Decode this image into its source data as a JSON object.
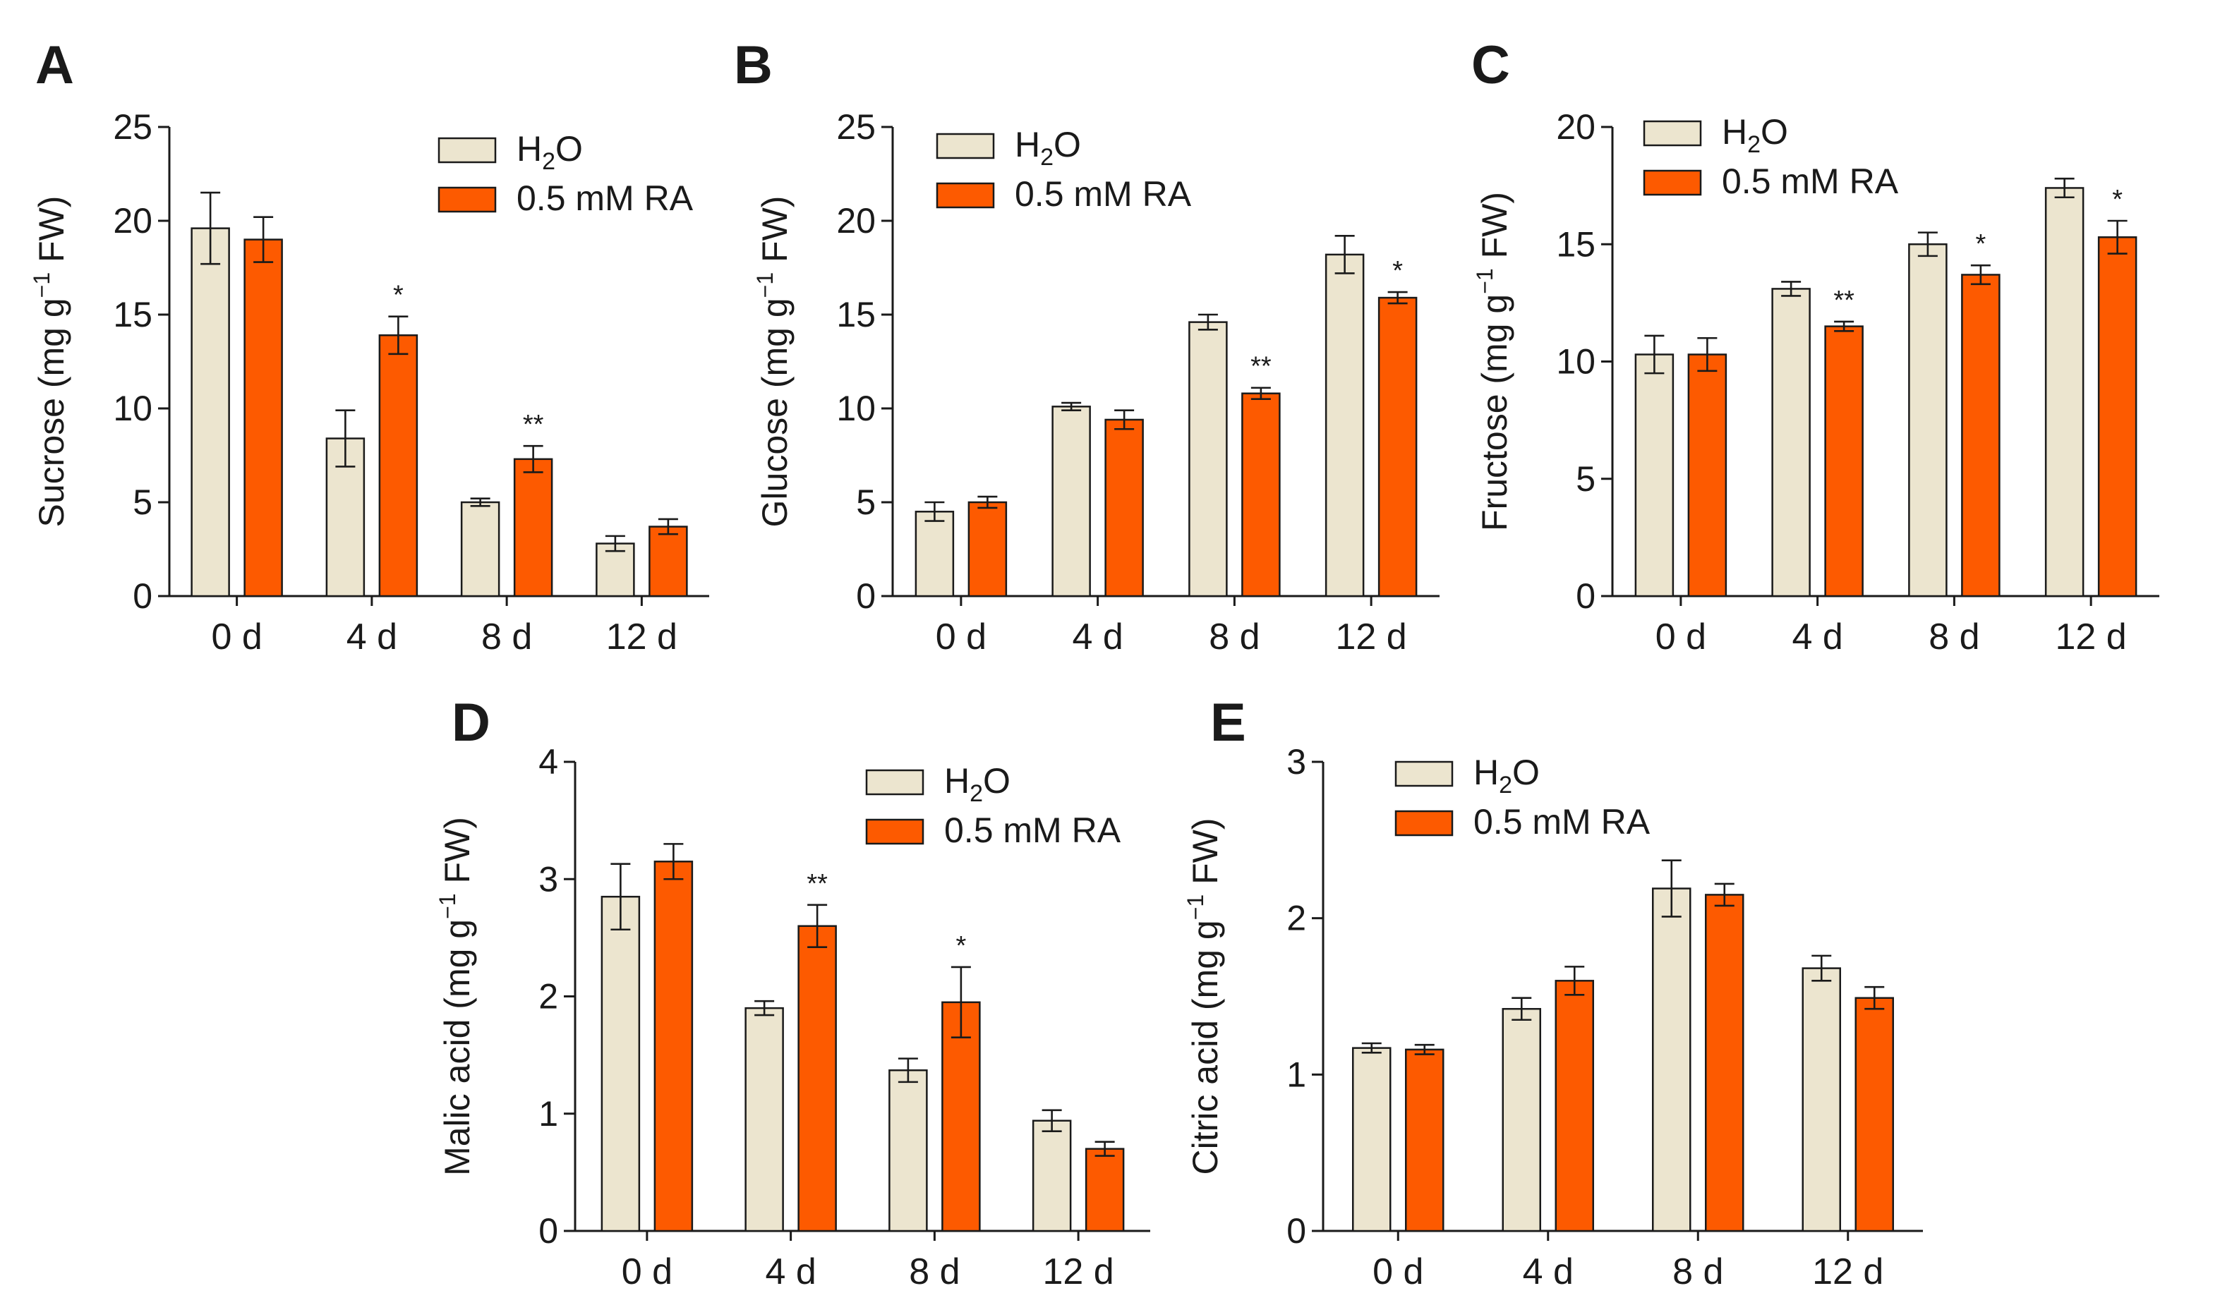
{
  "figure": {
    "legend": {
      "h2o_main": "H",
      "h2o_sub": "2",
      "h2o_tail": "O",
      "ra": "0.5 mM RA"
    },
    "colors": {
      "h2o": "#ece5cf",
      "ra": "#fd5a00",
      "axis": "#1a1a1a"
    }
  },
  "chart_data": [
    {
      "panel": "A",
      "type": "bar",
      "ylabel_prefix": "Sucrose (mg g",
      "ylabel_sup": "−1",
      "ylabel_suffix": " FW)",
      "categories": [
        "0 d",
        "4 d",
        "8 d",
        "12 d"
      ],
      "ylim": [
        0,
        25
      ],
      "yticks": [
        0,
        5,
        10,
        15,
        20,
        25
      ],
      "legend_position": "top-right",
      "series": [
        {
          "name": "H2O",
          "values": [
            19.6,
            8.4,
            5.0,
            2.8
          ],
          "errors": [
            1.9,
            1.5,
            0.2,
            0.4
          ]
        },
        {
          "name": "0.5 mM RA",
          "values": [
            19.0,
            13.9,
            7.3,
            3.7
          ],
          "errors": [
            1.2,
            1.0,
            0.7,
            0.4
          ]
        }
      ],
      "significance": [
        "",
        "*",
        "**",
        ""
      ]
    },
    {
      "panel": "B",
      "type": "bar",
      "ylabel_prefix": "Glucose (mg g",
      "ylabel_sup": "−1",
      "ylabel_suffix": " FW)",
      "categories": [
        "0 d",
        "4 d",
        "8 d",
        "12 d"
      ],
      "ylim": [
        0,
        25
      ],
      "yticks": [
        0,
        5,
        10,
        15,
        20,
        25
      ],
      "legend_position": "top-left",
      "series": [
        {
          "name": "H2O",
          "values": [
            4.5,
            10.1,
            14.6,
            18.2
          ],
          "errors": [
            0.5,
            0.2,
            0.4,
            1.0
          ]
        },
        {
          "name": "0.5 mM RA",
          "values": [
            5.0,
            9.4,
            10.8,
            15.9
          ],
          "errors": [
            0.3,
            0.5,
            0.3,
            0.3
          ]
        }
      ],
      "significance": [
        "",
        "",
        "**",
        "*"
      ]
    },
    {
      "panel": "C",
      "type": "bar",
      "ylabel_prefix": "Fructose (mg g",
      "ylabel_sup": "−1",
      "ylabel_suffix": " FW)",
      "categories": [
        "0 d",
        "4 d",
        "8 d",
        "12 d"
      ],
      "ylim": [
        0,
        20
      ],
      "yticks": [
        0,
        5,
        10,
        15,
        20
      ],
      "legend_position": "top-left",
      "series": [
        {
          "name": "H2O",
          "values": [
            10.3,
            13.1,
            15.0,
            17.4
          ],
          "errors": [
            0.8,
            0.3,
            0.5,
            0.4
          ]
        },
        {
          "name": "0.5 mM RA",
          "values": [
            10.3,
            11.5,
            13.7,
            15.3
          ],
          "errors": [
            0.7,
            0.2,
            0.4,
            0.7
          ]
        }
      ],
      "significance": [
        "",
        "**",
        "*",
        "*"
      ]
    },
    {
      "panel": "D",
      "type": "bar",
      "ylabel_prefix": "Malic acid (mg g",
      "ylabel_sup": "−1",
      "ylabel_suffix": " FW)",
      "categories": [
        "0 d",
        "4 d",
        "8 d",
        "12 d"
      ],
      "ylim": [
        0,
        4
      ],
      "yticks": [
        0,
        1,
        2,
        3,
        4
      ],
      "legend_position": "top-right",
      "series": [
        {
          "name": "H2O",
          "values": [
            2.85,
            1.9,
            1.37,
            0.94
          ],
          "errors": [
            0.28,
            0.06,
            0.1,
            0.09
          ]
        },
        {
          "name": "0.5 mM RA",
          "values": [
            3.15,
            2.6,
            1.95,
            0.7
          ],
          "errors": [
            0.15,
            0.18,
            0.3,
            0.06
          ]
        }
      ],
      "significance": [
        "",
        "**",
        "*",
        ""
      ]
    },
    {
      "panel": "E",
      "type": "bar",
      "ylabel_prefix": "Citric acid (mg g",
      "ylabel_sup": "−1",
      "ylabel_suffix": " FW)",
      "categories": [
        "0 d",
        "4 d",
        "8 d",
        "12 d"
      ],
      "ylim": [
        0,
        3
      ],
      "yticks": [
        0,
        1,
        2,
        3
      ],
      "legend_position": "top-left",
      "series": [
        {
          "name": "H2O",
          "values": [
            1.17,
            1.42,
            2.19,
            1.68
          ],
          "errors": [
            0.03,
            0.07,
            0.18,
            0.08
          ]
        },
        {
          "name": "0.5 mM RA",
          "values": [
            1.16,
            1.6,
            2.15,
            1.49
          ],
          "errors": [
            0.03,
            0.09,
            0.07,
            0.07
          ]
        }
      ],
      "significance": [
        "",
        "",
        "",
        ""
      ]
    }
  ]
}
